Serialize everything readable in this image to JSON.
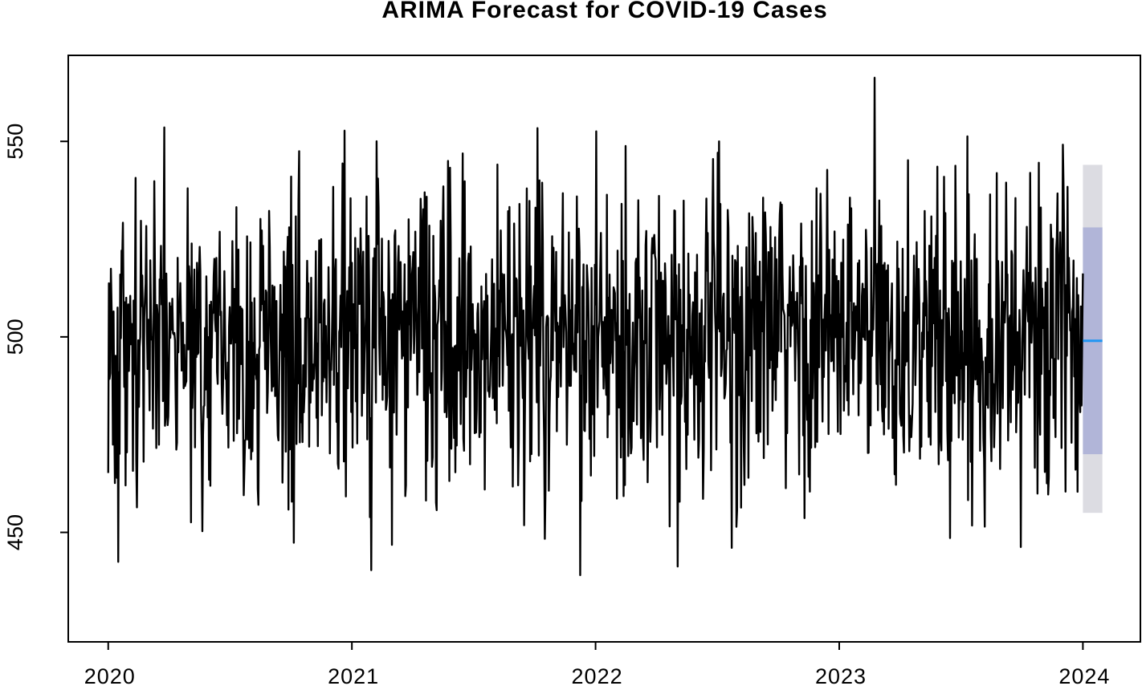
{
  "chart_data": {
    "type": "line",
    "title": "ARIMA Forecast for COVID-19 Cases",
    "xlabel": "",
    "ylabel": "",
    "xlim": [
      2019.836,
      2024.236
    ],
    "ylim": [
      422,
      572
    ],
    "x_ticks": [
      2020,
      2021,
      2022,
      2023,
      2024
    ],
    "x_tick_labels": [
      "2020",
      "2021",
      "2022",
      "2023",
      "2024"
    ],
    "y_ticks": [
      450,
      500,
      550
    ],
    "y_tick_labels": [
      "450",
      "500",
      "550"
    ],
    "grid": false,
    "legend": "none",
    "observed": {
      "x_start": 2020.0,
      "x_end": 2024.0,
      "n_points": 1461,
      "mean": 500,
      "sd": 20,
      "min": 424,
      "max": 570,
      "color": "#000000"
    },
    "forecast": {
      "x_start": 2024.0,
      "x_end": 2024.08,
      "point_forecast": 499,
      "interval_80": [
        470,
        528
      ],
      "interval_95": [
        455,
        544
      ],
      "line_color": "#2196f3",
      "band_80_color": "#b1b5d8",
      "band_95_color": "#dcdce2"
    }
  }
}
